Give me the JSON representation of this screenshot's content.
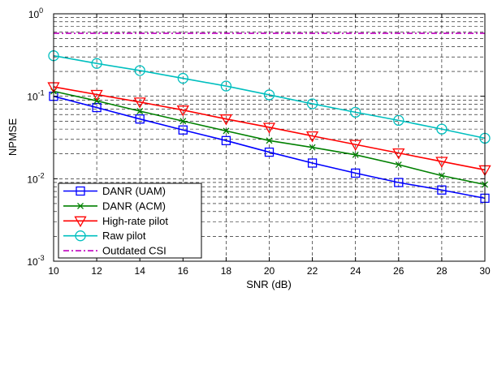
{
  "chart_data": {
    "type": "line",
    "xlabel": "SNR (dB)",
    "ylabel": "NPMSE",
    "x": [
      10,
      12,
      14,
      16,
      18,
      20,
      22,
      24,
      26,
      28,
      30
    ],
    "xticks": [
      "10",
      "12",
      "14",
      "16",
      "18",
      "20",
      "22",
      "24",
      "26",
      "28",
      "30"
    ],
    "xlim": [
      10,
      30
    ],
    "ylim": [
      0.001,
      1
    ],
    "yscale": "log",
    "yticks": [
      {
        "base": "10",
        "exp": "-3"
      },
      {
        "base": "10",
        "exp": "-2"
      },
      {
        "base": "10",
        "exp": "-1"
      },
      {
        "base": "10",
        "exp": "0"
      }
    ],
    "grid": true,
    "legend_position": "bottom-left",
    "series": [
      {
        "name": "DANR (UAM)",
        "color": "#0000ff",
        "marker": "square",
        "values": [
          0.1,
          0.073,
          0.053,
          0.039,
          0.029,
          0.021,
          0.0155,
          0.0117,
          0.009,
          0.0073,
          0.0058
        ]
      },
      {
        "name": "DANR (ACM)",
        "color": "#008000",
        "marker": "x",
        "values": [
          0.115,
          0.088,
          0.066,
          0.05,
          0.038,
          0.029,
          0.024,
          0.0195,
          0.0148,
          0.0109,
          0.0085
        ]
      },
      {
        "name": "High-rate pilot",
        "color": "#ff0000",
        "marker": "triangle-down",
        "values": [
          0.13,
          0.105,
          0.085,
          0.068,
          0.053,
          0.042,
          0.033,
          0.026,
          0.0205,
          0.0162,
          0.0128
        ]
      },
      {
        "name": "Raw pilot",
        "color": "#00bfbf",
        "marker": "circle",
        "values": [
          0.31,
          0.25,
          0.205,
          0.165,
          0.133,
          0.104,
          0.081,
          0.064,
          0.051,
          0.04,
          0.031
        ]
      },
      {
        "name": "Outdated CSI",
        "color": "#bf00bf",
        "marker": "none",
        "dash": "dashdot",
        "values": [
          0.58,
          0.58,
          0.58,
          0.58,
          0.58,
          0.58,
          0.58,
          0.58,
          0.58,
          0.58,
          0.58
        ]
      }
    ]
  }
}
